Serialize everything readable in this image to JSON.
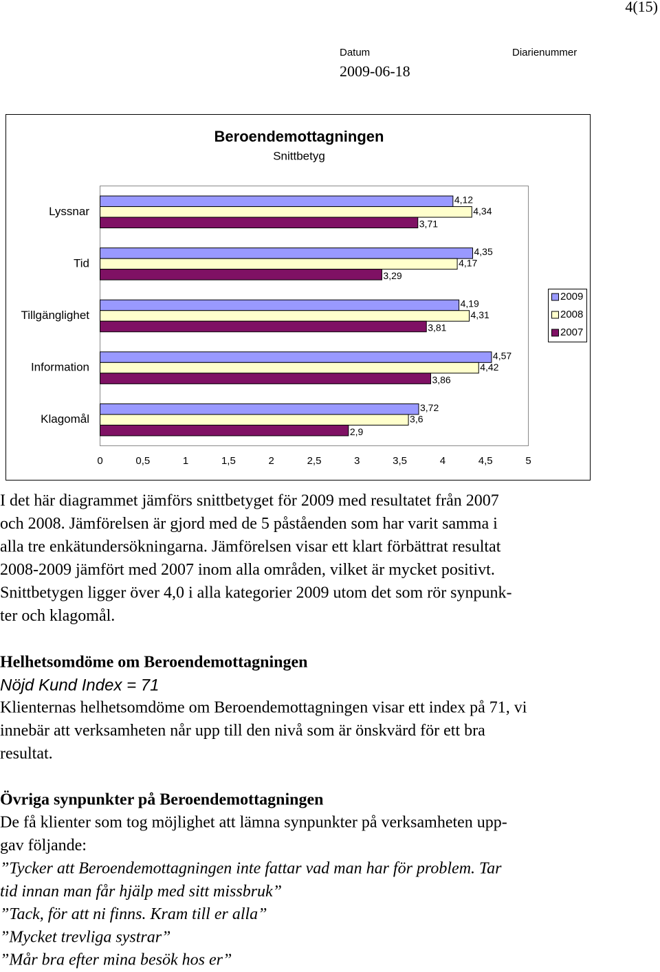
{
  "header": {
    "page": "4(15)",
    "date_label": "Datum",
    "ref_label": "Diarienummer",
    "date": "2009-06-18"
  },
  "chart_data": {
    "type": "bar",
    "orientation": "horizontal",
    "title": "Beroendemottagningen",
    "subtitle": "Snittbetyg",
    "categories": [
      "Lyssnar",
      "Tid",
      "Tillgänglighet",
      "Information",
      "Klagomål"
    ],
    "series": [
      {
        "name": "2009",
        "color": "#9999ff",
        "values": [
          4.12,
          4.35,
          4.19,
          4.57,
          3.72
        ],
        "value_labels": [
          "4,12",
          "4,35",
          "4,19",
          "4,57",
          "3,72"
        ]
      },
      {
        "name": "2008",
        "color": "#ffffcc",
        "values": [
          4.34,
          4.17,
          4.31,
          4.42,
          3.6
        ],
        "value_labels": [
          "4,34",
          "4,17",
          "4,31",
          "4,42",
          "3,6"
        ]
      },
      {
        "name": "2007",
        "color": "#7f1164",
        "values": [
          3.71,
          3.29,
          3.81,
          3.86,
          2.9
        ],
        "value_labels": [
          "3,71",
          "3,29",
          "3,81",
          "3,86",
          "2,9"
        ]
      }
    ],
    "xlim": [
      0,
      5
    ],
    "xticks": [
      0,
      {
        "value": 0.5,
        "label": "0,5"
      },
      1,
      {
        "value": 1.5,
        "label": "1,5"
      },
      2,
      {
        "value": 2.5,
        "label": "2,5"
      },
      3,
      {
        "value": 3.5,
        "label": "3,5"
      },
      4,
      {
        "value": 4.5,
        "label": "4,5"
      },
      5
    ],
    "legend": "right",
    "grid": false
  },
  "body": {
    "intro": [
      "I det här diagrammet jämförs snittbetyget för 2009 med resultatet från 2007",
      "och 2008. Jämförelsen är gjord med de 5 påståenden som har varit samma i",
      "alla tre enkätundersökningarna. Jämförelsen visar ett klart förbättrat resultat",
      "2008-2009 jämfört med 2007 inom alla områden, vilket är mycket positivt.",
      "Snittbetygen ligger över 4,0 i alla kategorier 2009 utom det som rör synpunk-",
      "ter och klagomål."
    ],
    "overall": {
      "heading": "Helhetsomdöme om Beroendemottagningen",
      "index": "Nöjd Kund Index = 71",
      "lines": [
        "Klienternas helhetsomdöme om Beroendemottagningen visar ett index på 71, vi",
        "innebär att verksamheten når upp till den nivå som är önskvärd för ett bra",
        "resultat."
      ]
    },
    "comments": {
      "heading": "Övriga synpunkter på Beroendemottagningen",
      "lines": [
        "De få klienter som tog möjlighet att lämna synpunkter på verksamheten upp-",
        "gav följande:"
      ],
      "quotes": [
        "”Tycker att Beroendemottagningen inte fattar vad man har för problem. Tar",
        "tid innan man får hjälp med sitt missbruk”",
        "”Tack, för att ni finns. Kram till er alla”",
        "”Mycket trevliga systrar”",
        "”Mår bra efter mina besök hos er”"
      ]
    }
  }
}
